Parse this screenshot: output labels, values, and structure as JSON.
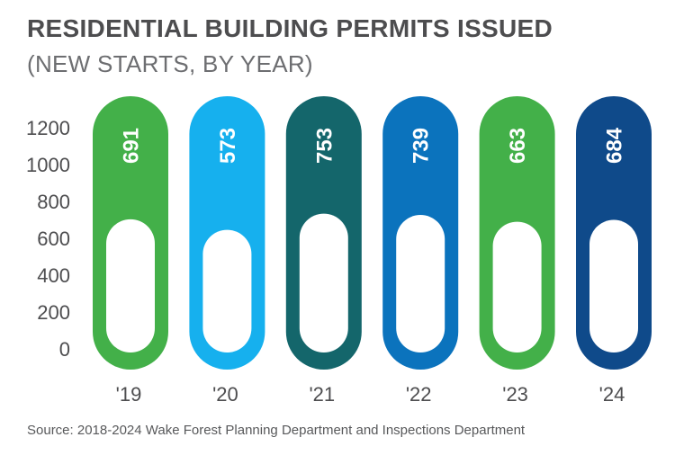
{
  "chart_data": {
    "type": "bar",
    "title": "RESIDENTIAL BUILDING PERMITS ISSUED",
    "subtitle": "(NEW STARTS, BY YEAR)",
    "categories": [
      "'19",
      "'20",
      "'21",
      "'22",
      "'23",
      "'24"
    ],
    "values": [
      691,
      573,
      753,
      739,
      663,
      684
    ],
    "colors": [
      "#43b049",
      "#16b0ee",
      "#14666b",
      "#0b73bd",
      "#43b049",
      "#0f4a8a"
    ],
    "yticks": [
      "1200",
      "1000",
      "800",
      "600",
      "400",
      "200",
      "0"
    ],
    "ylim": [
      0,
      1200
    ],
    "xlabel": "",
    "ylabel": "",
    "source": "Source: 2018-2024 Wake Forest Planning Department and Inspections Department"
  }
}
